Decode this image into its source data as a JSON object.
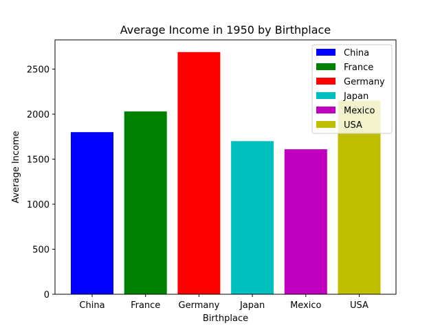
{
  "chart_data": {
    "type": "bar",
    "title": "Average Income in 1950 by Birthplace",
    "xlabel": "Birthplace",
    "ylabel": "Average Income",
    "categories": [
      "China",
      "France",
      "Germany",
      "Japan",
      "Mexico",
      "USA"
    ],
    "values": [
      1800,
      2030,
      2690,
      1700,
      1610,
      2150
    ],
    "colors": [
      "#0000ff",
      "#008000",
      "#ff0000",
      "#00bfbf",
      "#bf00bf",
      "#bfbf00"
    ],
    "ylim": [
      0,
      2825
    ],
    "yticks": [
      0,
      500,
      1000,
      1500,
      2000,
      2500
    ],
    "grid": false,
    "legend": {
      "placement": "top-right",
      "entries": [
        "China",
        "France",
        "Germany",
        "Japan",
        "Mexico",
        "USA"
      ]
    }
  }
}
